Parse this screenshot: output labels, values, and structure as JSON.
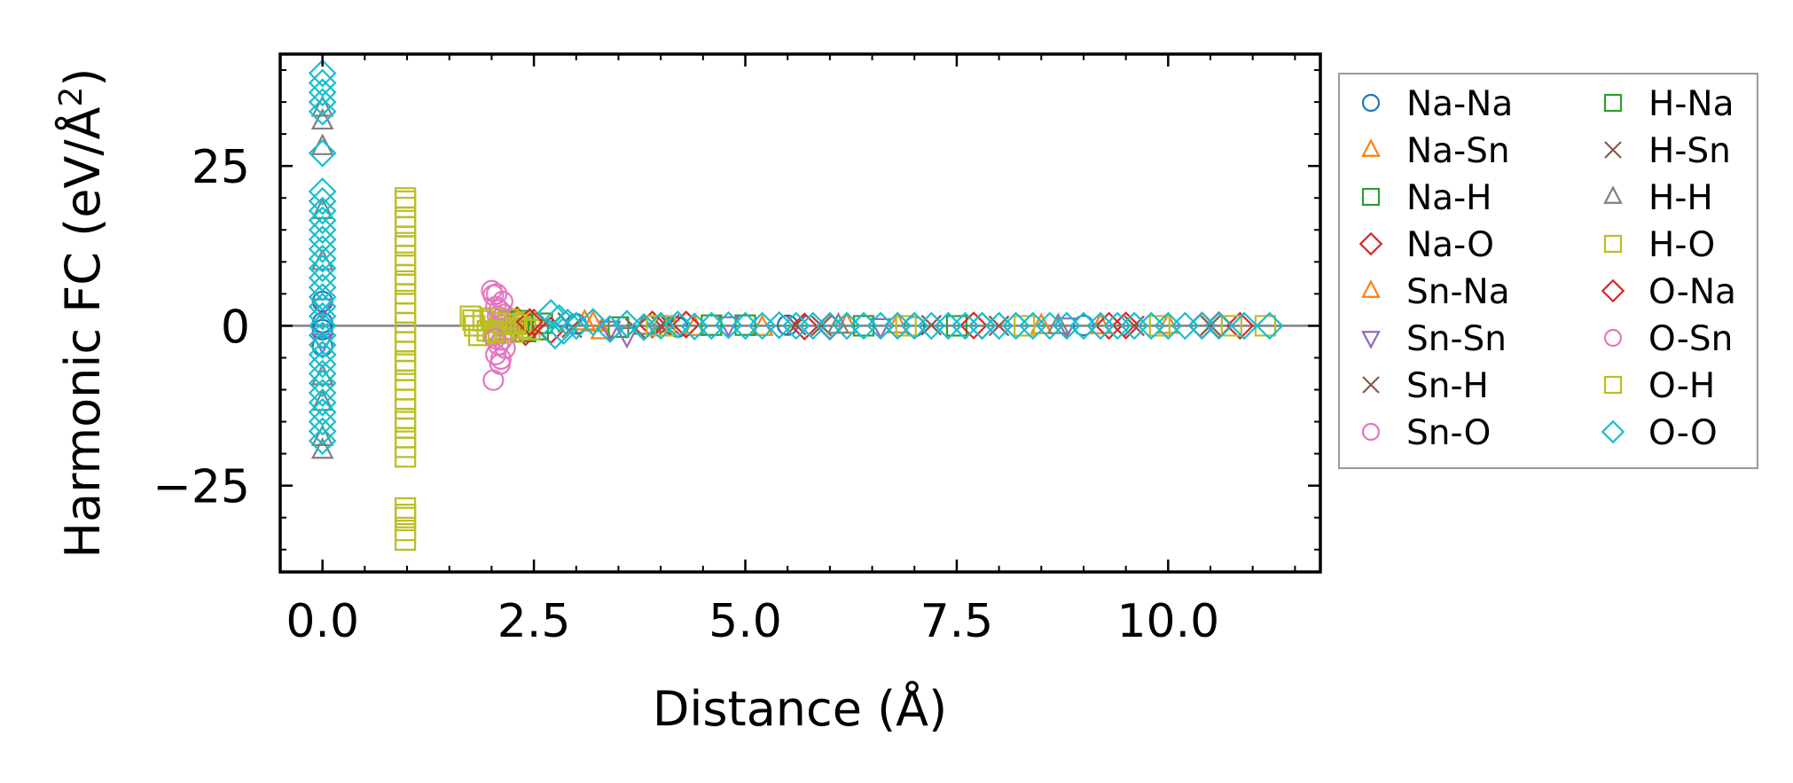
{
  "chart_data": {
    "type": "scatter",
    "title": "",
    "xlabel": "Distance (Å)",
    "ylabel": "Harmonic FC (eV/Å²)",
    "ylabel_base": "Harmonic FC (eV/Å",
    "ylabel_sup": "2",
    "ylabel_close": ")",
    "xlim": [
      -0.5,
      11.8
    ],
    "ylim": [
      -38.5,
      42.5
    ],
    "xticks": [
      0.0,
      2.5,
      5.0,
      7.5,
      10.0
    ],
    "xtick_labels": [
      "0.0",
      "2.5",
      "5.0",
      "7.5",
      "10.0"
    ],
    "yticks": [
      -25,
      0,
      25
    ],
    "ytick_labels": [
      "−25",
      "0",
      "25"
    ],
    "legend_position": "outside-right",
    "zero_line": true,
    "series": [
      {
        "name": "Na-Na",
        "marker": "circle",
        "color": "#1f77b4",
        "points": [
          [
            0.0,
            0.5
          ],
          [
            0.0,
            -0.6
          ],
          [
            0.0,
            3.8
          ],
          [
            0.0,
            -3.2
          ],
          [
            3.0,
            0.3
          ],
          [
            4.2,
            -0.2
          ],
          [
            5.5,
            0.1
          ],
          [
            7.0,
            -0.1
          ],
          [
            9.0,
            0.05
          ]
        ]
      },
      {
        "name": "Na-Sn",
        "marker": "triangle-up",
        "color": "#ff7f0e",
        "points": [
          [
            3.1,
            0.6
          ],
          [
            3.3,
            -0.8
          ],
          [
            4.0,
            0.2
          ],
          [
            5.2,
            -0.3
          ],
          [
            6.8,
            0.1
          ],
          [
            8.5,
            0.0
          ],
          [
            10.0,
            0.05
          ]
        ]
      },
      {
        "name": "Na-H",
        "marker": "square",
        "color": "#2ca02c",
        "points": [
          [
            2.3,
            0.8
          ],
          [
            2.4,
            -0.9
          ],
          [
            2.6,
            0.4
          ],
          [
            3.5,
            -0.2
          ],
          [
            5.0,
            0.1
          ],
          [
            7.5,
            0.0
          ]
        ]
      },
      {
        "name": "Na-O",
        "marker": "diamond",
        "color": "#d62728",
        "points": [
          [
            2.3,
            0.9
          ],
          [
            2.4,
            -1.0
          ],
          [
            2.5,
            0.5
          ],
          [
            3.9,
            0.2
          ],
          [
            6.0,
            -0.1
          ],
          [
            7.8,
            0.0
          ],
          [
            9.5,
            0.05
          ],
          [
            10.6,
            0.1
          ],
          [
            10.85,
            0.0
          ]
        ]
      },
      {
        "name": "Sn-Na",
        "marker": "triangle-up",
        "color": "#ff7f0e",
        "points": [
          [
            3.2,
            0.4
          ],
          [
            4.4,
            -0.3
          ],
          [
            6.2,
            0.1
          ],
          [
            9.2,
            0.0
          ]
        ]
      },
      {
        "name": "Sn-Sn",
        "marker": "triangle-down",
        "color": "#9467bd",
        "points": [
          [
            0.0,
            3.0
          ],
          [
            0.0,
            -2.5
          ],
          [
            3.4,
            -0.5
          ],
          [
            3.6,
            -1.5
          ],
          [
            4.8,
            0.2
          ],
          [
            6.6,
            -0.1
          ],
          [
            8.8,
            0.0
          ]
        ]
      },
      {
        "name": "Sn-H",
        "marker": "x",
        "color": "#8c564b",
        "points": [
          [
            2.9,
            0.5
          ],
          [
            3.7,
            -0.4
          ],
          [
            4.0,
            0.0
          ],
          [
            5.6,
            0.1
          ],
          [
            8.0,
            0.0
          ],
          [
            10.5,
            0.05
          ]
        ]
      },
      {
        "name": "Sn-O",
        "marker": "circle",
        "color": "#e377c2",
        "points": [
          [
            2.0,
            5.5
          ],
          [
            2.02,
            4.8
          ],
          [
            2.05,
            3.0
          ],
          [
            2.07,
            1.5
          ],
          [
            2.1,
            0.2
          ],
          [
            2.03,
            -1.5
          ],
          [
            2.08,
            -3.0
          ],
          [
            2.05,
            -4.5
          ],
          [
            2.1,
            -6.0
          ],
          [
            2.02,
            -8.5
          ],
          [
            2.15,
            1.8
          ],
          [
            2.12,
            -2.2
          ],
          [
            2.18,
            0.8
          ],
          [
            2.2,
            -1.0
          ]
        ]
      },
      {
        "name": "H-Na",
        "marker": "square",
        "color": "#2ca02c",
        "points": [
          [
            2.35,
            0.7
          ],
          [
            2.55,
            -0.6
          ],
          [
            4.6,
            0.1
          ],
          [
            6.4,
            0.0
          ]
        ]
      },
      {
        "name": "H-Sn",
        "marker": "x",
        "color": "#8c564b",
        "points": [
          [
            2.95,
            -0.3
          ],
          [
            4.1,
            0.2
          ],
          [
            5.9,
            0.0
          ],
          [
            7.2,
            0.1
          ],
          [
            9.6,
            0.0
          ]
        ]
      },
      {
        "name": "H-H",
        "marker": "triangle-up",
        "color": "#7f7f7f",
        "points": [
          [
            0.0,
            34.0
          ],
          [
            0.0,
            32.0
          ],
          [
            0.0,
            28.0
          ],
          [
            0.0,
            18.0
          ],
          [
            0.0,
            10.0
          ],
          [
            0.0,
            -8.0
          ],
          [
            0.0,
            -12.0
          ],
          [
            0.0,
            -17.5
          ],
          [
            0.0,
            -19.5
          ],
          [
            2.2,
            0.3
          ],
          [
            3.8,
            -0.1
          ],
          [
            6.1,
            0.05
          ],
          [
            8.7,
            0.0
          ]
        ]
      },
      {
        "name": "H-O",
        "marker": "square",
        "color": "#bcbd22",
        "points": [
          [
            0.98,
            20.0
          ],
          [
            0.98,
            18.5
          ],
          [
            0.98,
            17.0
          ],
          [
            0.98,
            15.5
          ],
          [
            0.98,
            14.0
          ],
          [
            0.98,
            12.5
          ],
          [
            0.98,
            11.0
          ],
          [
            0.98,
            9.5
          ],
          [
            0.98,
            8.0
          ],
          [
            0.98,
            6.5
          ],
          [
            0.98,
            5.0
          ],
          [
            0.98,
            3.5
          ],
          [
            0.98,
            2.0
          ],
          [
            0.98,
            0.5
          ],
          [
            0.98,
            -1.0
          ],
          [
            0.98,
            -2.5
          ],
          [
            0.98,
            -4.0
          ],
          [
            0.98,
            -5.5
          ],
          [
            0.98,
            -7.0
          ],
          [
            0.98,
            -8.5
          ],
          [
            0.98,
            -10.0
          ],
          [
            0.98,
            -11.5
          ],
          [
            0.98,
            -13.0
          ],
          [
            0.98,
            -14.5
          ],
          [
            0.98,
            -16.0
          ],
          [
            0.98,
            -17.5
          ],
          [
            0.98,
            -19.0
          ],
          [
            0.98,
            -20.5
          ],
          [
            0.98,
            -28.5
          ],
          [
            0.98,
            -30.0
          ],
          [
            0.98,
            -32.0
          ],
          [
            0.98,
            -33.5
          ],
          [
            1.75,
            1.5
          ],
          [
            1.8,
            0.0
          ],
          [
            1.85,
            -1.5
          ],
          [
            1.9,
            0.8
          ],
          [
            1.95,
            -0.8
          ],
          [
            2.0,
            1.2
          ],
          [
            2.05,
            -1.2
          ],
          [
            2.1,
            0.5
          ],
          [
            2.15,
            -0.5
          ],
          [
            2.2,
            1.0
          ],
          [
            2.25,
            -1.0
          ],
          [
            2.3,
            0.3
          ],
          [
            2.35,
            -0.3
          ],
          [
            2.4,
            0.6
          ],
          [
            2.45,
            -0.6
          ],
          [
            3.95,
            0.0
          ],
          [
            4.05,
            0.0
          ],
          [
            6.9,
            0.0
          ],
          [
            8.3,
            0.0
          ],
          [
            9.9,
            0.0
          ],
          [
            10.75,
            0.0
          ],
          [
            11.15,
            0.0
          ]
        ]
      },
      {
        "name": "O-Na",
        "marker": "diamond",
        "color": "#d62728",
        "points": [
          [
            2.45,
            0.6
          ],
          [
            2.7,
            -0.7
          ],
          [
            4.3,
            0.2
          ],
          [
            5.7,
            -0.1
          ],
          [
            7.7,
            0.05
          ],
          [
            9.3,
            0.0
          ],
          [
            10.4,
            0.05
          ]
        ]
      },
      {
        "name": "O-Sn",
        "marker": "circle",
        "color": "#e377c2",
        "points": [
          [
            2.06,
            5.0
          ],
          [
            2.09,
            2.5
          ],
          [
            2.04,
            -2.0
          ],
          [
            2.11,
            -5.2
          ],
          [
            2.16,
            -3.5
          ],
          [
            2.13,
            3.8
          ]
        ]
      },
      {
        "name": "O-H",
        "marker": "square",
        "color": "#bcbd22",
        "points": [
          [
            0.98,
            19.5
          ],
          [
            0.98,
            13.0
          ],
          [
            0.98,
            7.0
          ],
          [
            0.98,
            -6.0
          ],
          [
            0.98,
            -15.0
          ],
          [
            0.98,
            -29.5
          ],
          [
            1.78,
            0.9
          ],
          [
            2.02,
            -0.9
          ],
          [
            2.28,
            0.2
          ]
        ]
      },
      {
        "name": "O-O",
        "marker": "diamond",
        "color": "#17becf",
        "points": [
          [
            0.0,
            39.5
          ],
          [
            0.0,
            38.0
          ],
          [
            0.0,
            36.5
          ],
          [
            0.0,
            35.0
          ],
          [
            0.0,
            33.5
          ],
          [
            0.0,
            27.0
          ],
          [
            0.0,
            21.0
          ],
          [
            0.0,
            19.5
          ],
          [
            0.0,
            18.0
          ],
          [
            0.0,
            16.5
          ],
          [
            0.0,
            15.0
          ],
          [
            0.0,
            13.5
          ],
          [
            0.0,
            12.0
          ],
          [
            0.0,
            10.5
          ],
          [
            0.0,
            9.0
          ],
          [
            0.0,
            7.5
          ],
          [
            0.0,
            6.0
          ],
          [
            0.0,
            4.5
          ],
          [
            0.0,
            3.0
          ],
          [
            0.0,
            1.5
          ],
          [
            0.0,
            0.0
          ],
          [
            0.0,
            -1.5
          ],
          [
            0.0,
            -3.0
          ],
          [
            0.0,
            -4.5
          ],
          [
            0.0,
            -6.0
          ],
          [
            0.0,
            -7.5
          ],
          [
            0.0,
            -9.0
          ],
          [
            0.0,
            -10.5
          ],
          [
            0.0,
            -12.0
          ],
          [
            0.0,
            -13.5
          ],
          [
            0.0,
            -15.0
          ],
          [
            0.0,
            -16.5
          ],
          [
            0.0,
            -18.0
          ],
          [
            2.7,
            2.0
          ],
          [
            2.75,
            -1.5
          ],
          [
            2.8,
            1.2
          ],
          [
            2.85,
            -0.8
          ],
          [
            2.9,
            0.5
          ],
          [
            3.0,
            0.0
          ],
          [
            3.2,
            0.6
          ],
          [
            3.4,
            -0.5
          ],
          [
            3.6,
            0.3
          ],
          [
            3.8,
            -0.2
          ],
          [
            4.0,
            0.0
          ],
          [
            4.2,
            0.2
          ],
          [
            4.4,
            -0.1
          ],
          [
            4.6,
            0.0
          ],
          [
            4.8,
            0.1
          ],
          [
            5.0,
            0.0
          ],
          [
            5.2,
            0.0
          ],
          [
            5.4,
            0.1
          ],
          [
            5.6,
            0.0
          ],
          [
            5.8,
            0.0
          ],
          [
            6.0,
            0.0
          ],
          [
            6.2,
            0.0
          ],
          [
            6.4,
            0.0
          ],
          [
            6.6,
            0.0
          ],
          [
            6.8,
            0.0
          ],
          [
            7.0,
            0.0
          ],
          [
            7.2,
            0.0
          ],
          [
            7.4,
            0.0
          ],
          [
            7.6,
            0.0
          ],
          [
            7.8,
            0.0
          ],
          [
            8.0,
            0.0
          ],
          [
            8.2,
            0.0
          ],
          [
            8.4,
            0.0
          ],
          [
            8.6,
            0.0
          ],
          [
            8.8,
            0.0
          ],
          [
            9.0,
            0.0
          ],
          [
            9.2,
            0.0
          ],
          [
            9.4,
            0.0
          ],
          [
            9.6,
            0.0
          ],
          [
            9.8,
            0.0
          ],
          [
            10.0,
            0.0
          ],
          [
            10.2,
            0.0
          ],
          [
            10.4,
            0.0
          ],
          [
            10.6,
            0.0
          ],
          [
            10.9,
            0.0
          ],
          [
            11.2,
            0.0
          ]
        ]
      }
    ]
  }
}
